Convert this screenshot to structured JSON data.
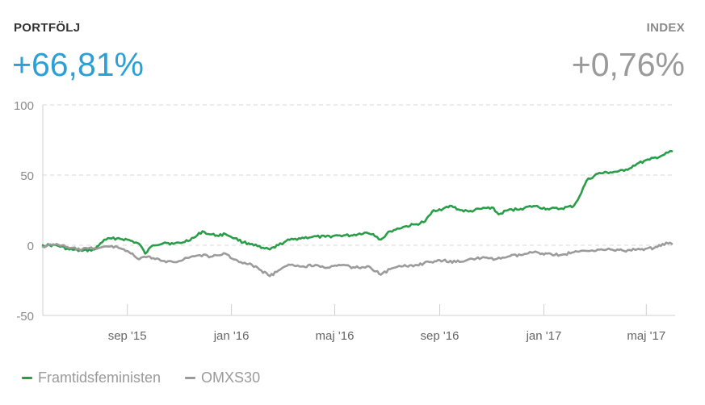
{
  "header": {
    "portfolio_label": "PORTFÖLJ",
    "portfolio_value": "+66,81%",
    "index_label": "INDEX",
    "index_value": "+0,76%"
  },
  "colors": {
    "portfolio": "#2a9d48",
    "index": "#9b9b9b",
    "accent": "#2b9fd8"
  },
  "chart_data": {
    "type": "line",
    "ylim": [
      -50,
      100
    ],
    "yticks": [
      100,
      50,
      0,
      -50
    ],
    "x_range": [
      "2015-05-25",
      "2017-05-31"
    ],
    "xticks": [
      {
        "date": "2015-09-01",
        "label": "sep '15"
      },
      {
        "date": "2016-01-01",
        "label": "jan '16"
      },
      {
        "date": "2016-05-01",
        "label": "maj '16"
      },
      {
        "date": "2016-09-01",
        "label": "sep '16"
      },
      {
        "date": "2017-01-01",
        "label": "jan '17"
      },
      {
        "date": "2017-05-01",
        "label": "maj '17"
      }
    ],
    "grid": "horizontal-dashed",
    "legend_position": "bottom-left",
    "series": [
      {
        "name": "Framtidsfeministen",
        "points": [
          [
            "2015-05-25",
            0
          ],
          [
            "2015-06-10",
            0
          ],
          [
            "2015-06-25",
            -3
          ],
          [
            "2015-07-10",
            -4
          ],
          [
            "2015-07-25",
            -3
          ],
          [
            "2015-08-05",
            4
          ],
          [
            "2015-08-20",
            5
          ],
          [
            "2015-09-01",
            4
          ],
          [
            "2015-09-15",
            1
          ],
          [
            "2015-09-22",
            -6
          ],
          [
            "2015-10-01",
            0
          ],
          [
            "2015-10-15",
            2
          ],
          [
            "2015-10-25",
            1
          ],
          [
            "2015-11-05",
            2
          ],
          [
            "2015-11-20",
            6
          ],
          [
            "2015-11-28",
            10
          ],
          [
            "2015-12-05",
            8
          ],
          [
            "2015-12-15",
            7
          ],
          [
            "2015-12-25",
            8
          ],
          [
            "2016-01-05",
            5
          ],
          [
            "2016-01-15",
            2
          ],
          [
            "2016-01-25",
            1
          ],
          [
            "2016-02-05",
            -2
          ],
          [
            "2016-02-15",
            -3
          ],
          [
            "2016-02-25",
            0
          ],
          [
            "2016-03-05",
            3
          ],
          [
            "2016-03-20",
            5
          ],
          [
            "2016-04-05",
            6
          ],
          [
            "2016-04-20",
            6
          ],
          [
            "2016-05-05",
            7
          ],
          [
            "2016-05-20",
            7
          ],
          [
            "2016-06-05",
            9
          ],
          [
            "2016-06-15",
            8
          ],
          [
            "2016-06-24",
            4
          ],
          [
            "2016-07-05",
            10
          ],
          [
            "2016-07-20",
            13
          ],
          [
            "2016-08-05",
            15
          ],
          [
            "2016-08-15",
            17
          ],
          [
            "2016-08-25",
            25
          ],
          [
            "2016-09-05",
            26
          ],
          [
            "2016-09-15",
            28
          ],
          [
            "2016-09-25",
            25
          ],
          [
            "2016-10-05",
            24
          ],
          [
            "2016-10-20",
            26
          ],
          [
            "2016-11-01",
            27
          ],
          [
            "2016-11-09",
            22
          ],
          [
            "2016-11-20",
            25
          ],
          [
            "2016-12-05",
            26
          ],
          [
            "2016-12-20",
            28
          ],
          [
            "2017-01-05",
            26
          ],
          [
            "2017-01-20",
            26
          ],
          [
            "2017-02-05",
            28
          ],
          [
            "2017-02-12",
            35
          ],
          [
            "2017-02-20",
            46
          ],
          [
            "2017-03-05",
            51
          ],
          [
            "2017-03-20",
            52
          ],
          [
            "2017-04-05",
            53
          ],
          [
            "2017-04-20",
            58
          ],
          [
            "2017-05-05",
            61
          ],
          [
            "2017-05-20",
            64
          ],
          [
            "2017-05-31",
            67
          ]
        ]
      },
      {
        "name": "OMXS30",
        "points": [
          [
            "2015-05-25",
            -1
          ],
          [
            "2015-06-10",
            1
          ],
          [
            "2015-06-25",
            -2
          ],
          [
            "2015-07-10",
            -3
          ],
          [
            "2015-07-25",
            -2
          ],
          [
            "2015-08-10",
            -1
          ],
          [
            "2015-08-20",
            -1
          ],
          [
            "2015-09-01",
            -4
          ],
          [
            "2015-09-15",
            -10
          ],
          [
            "2015-09-25",
            -8
          ],
          [
            "2015-10-10",
            -11
          ],
          [
            "2015-10-25",
            -12
          ],
          [
            "2015-11-10",
            -9
          ],
          [
            "2015-11-25",
            -7
          ],
          [
            "2015-12-10",
            -8
          ],
          [
            "2015-12-25",
            -6
          ],
          [
            "2016-01-10",
            -12
          ],
          [
            "2016-01-25",
            -14
          ],
          [
            "2016-02-05",
            -18
          ],
          [
            "2016-02-15",
            -22
          ],
          [
            "2016-02-25",
            -18
          ],
          [
            "2016-03-10",
            -14
          ],
          [
            "2016-03-25",
            -15
          ],
          [
            "2016-04-10",
            -14
          ],
          [
            "2016-04-25",
            -16
          ],
          [
            "2016-05-10",
            -14
          ],
          [
            "2016-05-25",
            -16
          ],
          [
            "2016-06-10",
            -15
          ],
          [
            "2016-06-24",
            -21
          ],
          [
            "2016-07-05",
            -17
          ],
          [
            "2016-07-20",
            -15
          ],
          [
            "2016-08-05",
            -14
          ],
          [
            "2016-08-20",
            -12
          ],
          [
            "2016-09-05",
            -11
          ],
          [
            "2016-09-20",
            -12
          ],
          [
            "2016-10-05",
            -10
          ],
          [
            "2016-10-20",
            -9
          ],
          [
            "2016-11-05",
            -10
          ],
          [
            "2016-11-20",
            -8
          ],
          [
            "2016-12-05",
            -7
          ],
          [
            "2016-12-20",
            -5
          ],
          [
            "2017-01-05",
            -6
          ],
          [
            "2017-01-20",
            -7
          ],
          [
            "2017-02-05",
            -5
          ],
          [
            "2017-02-20",
            -4
          ],
          [
            "2017-03-05",
            -3
          ],
          [
            "2017-03-20",
            -3
          ],
          [
            "2017-04-05",
            -4
          ],
          [
            "2017-04-20",
            -3
          ],
          [
            "2017-05-10",
            -2
          ],
          [
            "2017-05-20",
            1
          ],
          [
            "2017-05-31",
            1
          ]
        ]
      }
    ]
  }
}
